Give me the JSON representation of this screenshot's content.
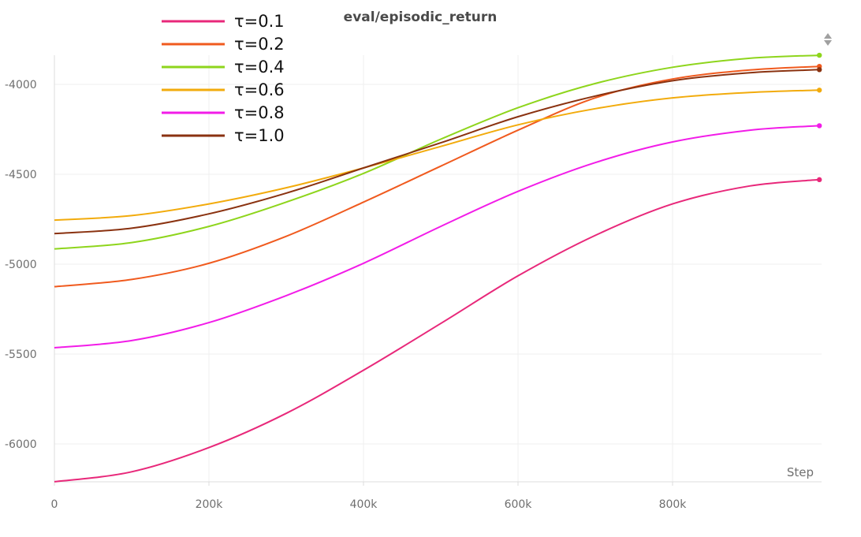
{
  "chart_data": {
    "type": "line",
    "title": "eval/episodic_return",
    "xlabel": "Step",
    "ylabel": "",
    "xlim": [
      0,
      1000000
    ],
    "ylim": [
      -6220,
      -3830
    ],
    "x_ticks": [
      {
        "value": 0,
        "label": "0"
      },
      {
        "value": 200000,
        "label": "200k"
      },
      {
        "value": 400000,
        "label": "400k"
      },
      {
        "value": 600000,
        "label": "600k"
      },
      {
        "value": 800000,
        "label": "800k"
      }
    ],
    "y_ticks": [
      {
        "value": -4000,
        "label": "-4000"
      },
      {
        "value": -4500,
        "label": "-4500"
      },
      {
        "value": -5000,
        "label": "-5000"
      },
      {
        "value": -5500,
        "label": "-5500"
      },
      {
        "value": -6000,
        "label": "-6000"
      }
    ],
    "grid": true,
    "legend_position": "top-left",
    "x": [
      0,
      100000,
      200000,
      300000,
      400000,
      500000,
      600000,
      700000,
      800000,
      900000,
      990000
    ],
    "series": [
      {
        "name": "τ=0.1",
        "color": "#e8287a",
        "values": [
          -6210,
          -6155,
          -6020,
          -5830,
          -5590,
          -5330,
          -5065,
          -4840,
          -4665,
          -4565,
          -4530
        ]
      },
      {
        "name": "τ=0.2",
        "color": "#f05a1e",
        "values": [
          -5125,
          -5085,
          -4995,
          -4845,
          -4655,
          -4455,
          -4255,
          -4075,
          -3970,
          -3920,
          -3900
        ]
      },
      {
        "name": "τ=0.4",
        "color": "#8ed51c",
        "values": [
          -4915,
          -4880,
          -4790,
          -4655,
          -4495,
          -4305,
          -4130,
          -3995,
          -3905,
          -3855,
          -3838
        ]
      },
      {
        "name": "τ=0.6",
        "color": "#f2ab0c",
        "values": [
          -4755,
          -4730,
          -4665,
          -4575,
          -4465,
          -4345,
          -4225,
          -4135,
          -4075,
          -4045,
          -4032
        ]
      },
      {
        "name": "τ=0.8",
        "color": "#f21ce8",
        "values": [
          -5465,
          -5425,
          -5325,
          -5175,
          -4995,
          -4790,
          -4595,
          -4435,
          -4320,
          -4255,
          -4230
        ]
      },
      {
        "name": "τ=1.0",
        "color": "#8a3210",
        "values": [
          -4830,
          -4800,
          -4720,
          -4605,
          -4465,
          -4325,
          -4180,
          -4065,
          -3980,
          -3935,
          -3918
        ]
      }
    ]
  }
}
